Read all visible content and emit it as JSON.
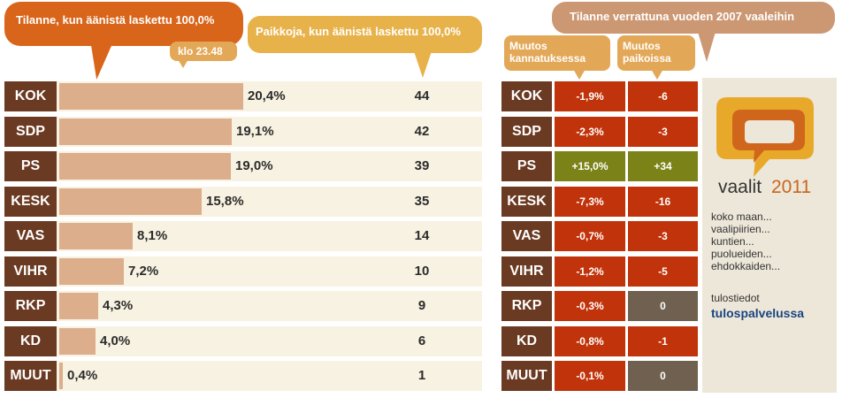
{
  "headers": {
    "votes": "Tilanne, kun äänistä laskettu 100,0%",
    "time": "klo 23.48",
    "seats": "Paikkoja, kun äänistä laskettu 100,0%",
    "compare": "Tilanne verrattuna vuoden 2007 vaaleihin",
    "support_change": [
      "Muutos",
      "kannatuksessa"
    ],
    "seat_change": [
      "Muutos",
      "paikoissa"
    ]
  },
  "colors": {
    "party_label": "#6b3a22",
    "bar": "#dcae8c",
    "row_bg": "#f7f2e1",
    "negative": "#c1330a",
    "positive": "#7b8217",
    "zero": "#6f6050"
  },
  "chart_data": {
    "type": "bar",
    "categories": [
      "KOK",
      "SDP",
      "PS",
      "KESK",
      "VAS",
      "VIHR",
      "RKP",
      "KD",
      "MUUT"
    ],
    "values": [
      20.4,
      19.1,
      19.0,
      15.8,
      8.1,
      7.2,
      4.3,
      4.0,
      0.4
    ],
    "value_labels": [
      "20,4%",
      "19,1%",
      "19,0%",
      "15,8%",
      "8,1%",
      "7,2%",
      "4,3%",
      "4,0%",
      "0,4%"
    ],
    "seats": [
      44,
      42,
      39,
      35,
      14,
      10,
      9,
      6,
      1
    ],
    "support_change": [
      -1.9,
      -2.3,
      15.0,
      -7.3,
      -0.7,
      -1.2,
      -0.3,
      -0.8,
      -0.1
    ],
    "support_change_labels": [
      "-1,9%",
      "-2,3%",
      "+15,0%",
      "-7,3%",
      "-0,7%",
      "-1,2%",
      "-0,3%",
      "-0,8%",
      "-0,1%"
    ],
    "seat_change": [
      -6,
      -3,
      34,
      -16,
      -3,
      -5,
      0,
      -1,
      0
    ],
    "seat_change_labels": [
      "-6",
      "-3",
      "+34",
      "-16",
      "-3",
      "-5",
      "0",
      "-1",
      "0"
    ],
    "xlim": [
      0,
      20.4
    ],
    "grid": false
  },
  "sidebar": {
    "logo": {
      "text": "vaalit",
      "year": "2011"
    },
    "links": [
      "koko maan...",
      "vaalipiirien...",
      "kuntien...",
      "puolueiden...",
      "ehdokkaiden..."
    ],
    "result_lead": "tulostiedot",
    "result_link": "tulospalvelussa"
  }
}
